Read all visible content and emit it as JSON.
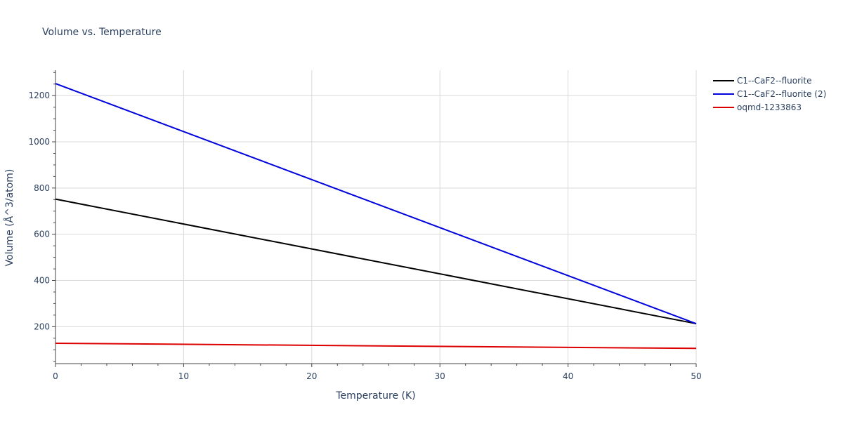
{
  "chart_data": {
    "type": "line",
    "title": "Volume vs. Temperature",
    "xlabel": "Temperature (K)",
    "ylabel": "Volume (Å^3/atom)",
    "xlim": [
      0,
      50
    ],
    "ylim": [
      40,
      1310
    ],
    "xticks": [
      0,
      10,
      20,
      30,
      40,
      50
    ],
    "yticks": [
      200,
      400,
      600,
      800,
      1000,
      1200
    ],
    "grid": true,
    "legend_position": "top-right",
    "series": [
      {
        "name": "C1--CaF2--fluorite",
        "color": "#000000",
        "x": [
          0,
          50
        ],
        "y": [
          752,
          213
        ]
      },
      {
        "name": "C1--CaF2--fluorite (2)",
        "color": "#0000dd",
        "x": [
          0,
          50
        ],
        "y": [
          1252,
          213
        ]
      },
      {
        "name": "oqmd-1233863",
        "color": "#dd0000",
        "x": [
          0,
          50
        ],
        "y": [
          128,
          106
        ]
      }
    ]
  }
}
